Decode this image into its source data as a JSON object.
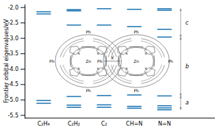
{
  "chart_data": {
    "type": "energy_levels",
    "ylabel": "Frontier orbital eigenvalues/eV",
    "ylim": [
      -5.6,
      -1.9
    ],
    "yticks": [
      -5.5,
      {
        "value": -5.0,
        "label": "-5.0"
      },
      -4.5,
      {
        "value": -4.0,
        "label": "-4.0"
      },
      -3.5,
      {
        "value": -3.0,
        "label": "-3.0"
      },
      -2.5,
      {
        "value": -2.0,
        "label": "-2.0"
      }
    ],
    "categories": [
      "C₂H₄",
      "C₂H₂",
      "C₂",
      "CH=N",
      "N=N"
    ],
    "values": [
      [
        -2.15,
        -2.22,
        -5.03,
        -5.12
      ],
      [
        -2.08,
        -2.12,
        -2.58,
        -4.9,
        -5.18,
        -5.25
      ],
      [
        -2.05,
        -2.58,
        -4.87,
        -5.17,
        -5.25
      ],
      [
        -2.07,
        -2.63,
        -4.85,
        -5.22,
        -5.28
      ],
      [
        -2.05,
        -2.1,
        -2.72,
        -2.97,
        -4.88,
        -5.2,
        -5.27,
        -5.33
      ]
    ],
    "annotations": [
      {
        "text": "a",
        "bottom": -5.33,
        "top": -4.88
      },
      {
        "text": "b",
        "bottom": -4.88,
        "top": -2.97
      },
      {
        "text": "c",
        "bottom": -2.97,
        "top": -2.05
      }
    ],
    "structure": {
      "phenyl": "Ph",
      "nitrogen": "N",
      "metal": "Zn",
      "linker": "X"
    }
  }
}
